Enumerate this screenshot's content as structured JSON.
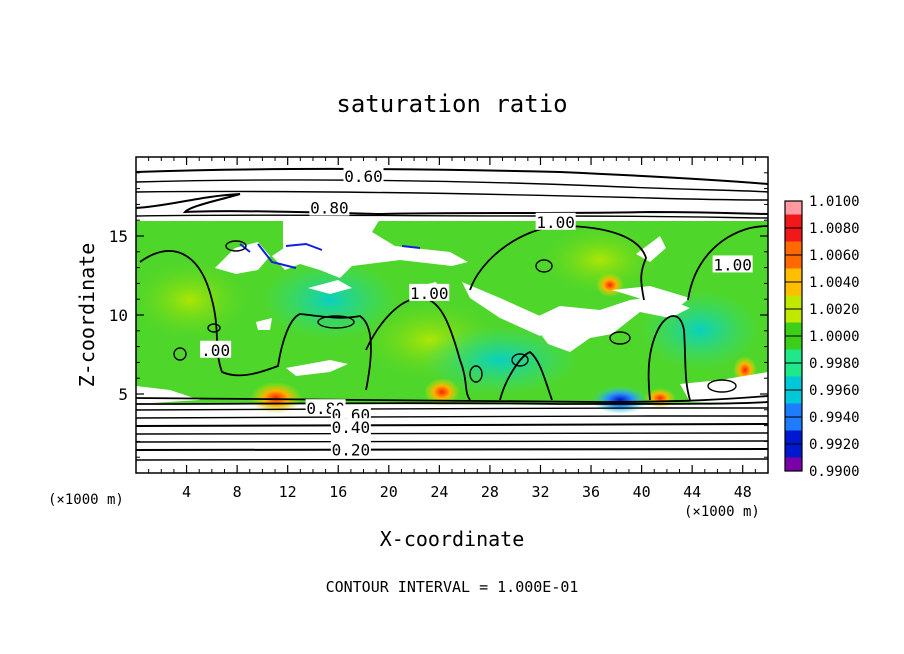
{
  "chart_data": {
    "type": "heatmap",
    "title": "saturation ratio",
    "xlabel": "X-coordinate",
    "ylabel": "Z-coordinate",
    "x_unit": "(×1000 m)",
    "z_unit": "(×1000 m)",
    "xlim": [
      0,
      50
    ],
    "ylim": [
      0,
      20
    ],
    "x_ticks": [
      4,
      8,
      12,
      16,
      20,
      24,
      28,
      32,
      36,
      40,
      44,
      48
    ],
    "y_ticks": [
      5,
      10,
      15
    ],
    "colorbar": {
      "min": 0.99,
      "max": 1.01,
      "labels": [
        "1.0100",
        "1.0080",
        "1.0060",
        "1.0040",
        "1.0020",
        "1.0000",
        "0.9980",
        "0.9960",
        "0.9940",
        "0.9920",
        "0.9900"
      ],
      "colors": [
        "#ff9aa0",
        "#f01818",
        "#ff6a00",
        "#ffbf00",
        "#c0e800",
        "#3ccf1a",
        "#1ee88a",
        "#00c8d8",
        "#1e7cff",
        "#0018d0",
        "#7a00a8"
      ]
    },
    "contour_labels": [
      {
        "text": "0.60",
        "x": 18.0,
        "y": 18.8
      },
      {
        "text": "0.80",
        "x": 15.3,
        "y": 16.8
      },
      {
        "text": "1.00",
        "x": 33.2,
        "y": 15.9
      },
      {
        "text": "1.00",
        "x": 23.2,
        "y": 11.4
      },
      {
        "text": "1.00",
        "x": 47.2,
        "y": 13.2
      },
      {
        "text": ".00",
        "x": 6.3,
        "y": 7.8
      },
      {
        "text": "0.80",
        "x": 15.0,
        "y": 4.1
      },
      {
        "text": "0.60",
        "x": 17.0,
        "y": 3.7
      },
      {
        "text": "0.40",
        "x": 17.0,
        "y": 2.9
      },
      {
        "text": "0.20",
        "x": 17.0,
        "y": 1.5
      }
    ],
    "contour_levels": [
      0.2,
      0.4,
      0.6,
      0.8,
      1.0
    ],
    "footer": "CONTOUR INTERVAL = 1.000E-01"
  }
}
